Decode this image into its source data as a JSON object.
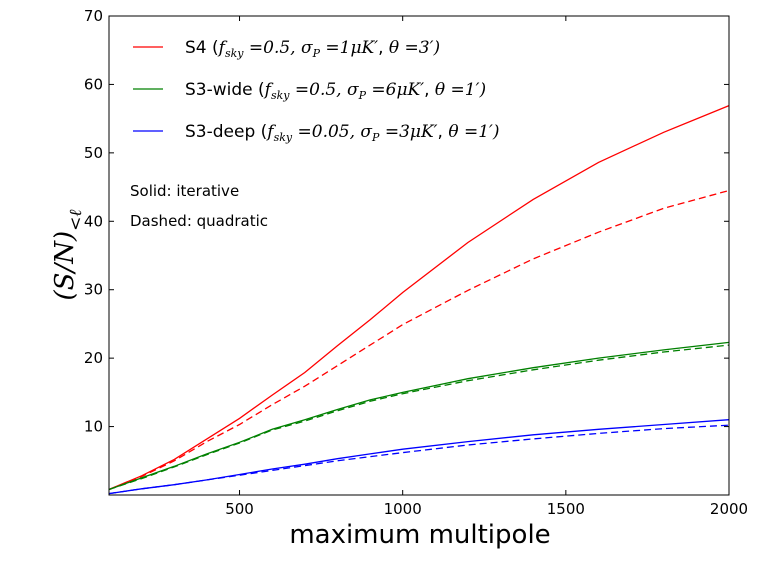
{
  "chart_data": {
    "type": "line",
    "xlabel": "maximum multipole",
    "ylabel": "(S/N)<ℓ",
    "xlim": [
      100,
      2000
    ],
    "ylim": [
      0,
      70
    ],
    "xticks": [
      500,
      1000,
      1500,
      2000
    ],
    "yticks": [
      10,
      20,
      30,
      40,
      50,
      60,
      70
    ],
    "xtick_labels": [
      "500",
      "1000",
      "1500",
      "2000"
    ],
    "ytick_labels": [
      "10",
      "20",
      "30",
      "40",
      "50",
      "60",
      "70"
    ],
    "grid": false,
    "legend_position": "top-left",
    "annotations": [
      "Solid:  iterative",
      "Dashed: quadratic"
    ],
    "series": [
      {
        "name": "S4 (f_sky=0.5, σ_P=1μK', θ=3')",
        "legend": {
          "prefix": "S4 (",
          "fsky": "0.5",
          "sigma": "1",
          "theta": "3"
        },
        "color": "#ff0000",
        "style": "solid",
        "x": [
          100,
          200,
          300,
          400,
          500,
          600,
          700,
          800,
          900,
          1000,
          1200,
          1400,
          1600,
          1800,
          2000
        ],
        "y": [
          0.8,
          2.8,
          5.2,
          8.2,
          11.2,
          14.6,
          17.9,
          21.8,
          25.6,
          29.6,
          36.9,
          43.2,
          48.6,
          53.0,
          56.9
        ]
      },
      {
        "name": "S4 quadratic",
        "color": "#ff0000",
        "style": "dashed",
        "x": [
          100,
          200,
          300,
          400,
          500,
          600,
          700,
          800,
          900,
          1000,
          1200,
          1400,
          1600,
          1800,
          2000
        ],
        "y": [
          0.8,
          2.7,
          5.0,
          7.8,
          10.3,
          13.2,
          15.9,
          18.9,
          21.9,
          24.9,
          29.9,
          34.5,
          38.4,
          41.9,
          44.5
        ]
      },
      {
        "name": "S3-wide (f_sky=0.5, σ_P=6μK', θ=1')",
        "legend": {
          "prefix": "S3-wide (",
          "fsky": "0.5",
          "sigma": "6",
          "theta": "1"
        },
        "color": "#008000",
        "style": "solid",
        "x": [
          100,
          200,
          300,
          400,
          500,
          600,
          700,
          800,
          900,
          1000,
          1200,
          1400,
          1600,
          1800,
          2000
        ],
        "y": [
          0.8,
          2.5,
          4.2,
          6.0,
          7.7,
          9.6,
          11.0,
          12.5,
          13.9,
          15.0,
          17.0,
          18.6,
          20.0,
          21.2,
          22.3
        ]
      },
      {
        "name": "S3-wide quadratic",
        "color": "#008000",
        "style": "dashed",
        "x": [
          100,
          200,
          300,
          400,
          500,
          600,
          700,
          800,
          900,
          1000,
          1200,
          1400,
          1600,
          1800,
          2000
        ],
        "y": [
          0.8,
          2.4,
          4.1,
          5.9,
          7.6,
          9.5,
          10.8,
          12.3,
          13.7,
          14.8,
          16.7,
          18.3,
          19.7,
          20.9,
          21.9
        ]
      },
      {
        "name": "S3-deep (f_sky=0.05, σ_P=3μK', θ=1')",
        "legend": {
          "prefix": "S3-deep (",
          "fsky": "0.05",
          "sigma": "3",
          "theta": "1"
        },
        "color": "#0000ff",
        "style": "solid",
        "x": [
          100,
          200,
          300,
          400,
          500,
          600,
          700,
          800,
          900,
          1000,
          1200,
          1400,
          1600,
          1800,
          2000
        ],
        "y": [
          0.2,
          0.9,
          1.5,
          2.2,
          3.0,
          3.8,
          4.5,
          5.3,
          6.0,
          6.7,
          7.8,
          8.8,
          9.6,
          10.3,
          11.0
        ]
      },
      {
        "name": "S3-deep quadratic",
        "color": "#0000ff",
        "style": "dashed",
        "x": [
          100,
          200,
          300,
          400,
          500,
          600,
          700,
          800,
          900,
          1000,
          1200,
          1400,
          1600,
          1800,
          2000
        ],
        "y": [
          0.2,
          0.9,
          1.5,
          2.2,
          2.9,
          3.6,
          4.3,
          5.0,
          5.6,
          6.2,
          7.3,
          8.2,
          9.0,
          9.7,
          10.2
        ]
      }
    ]
  }
}
